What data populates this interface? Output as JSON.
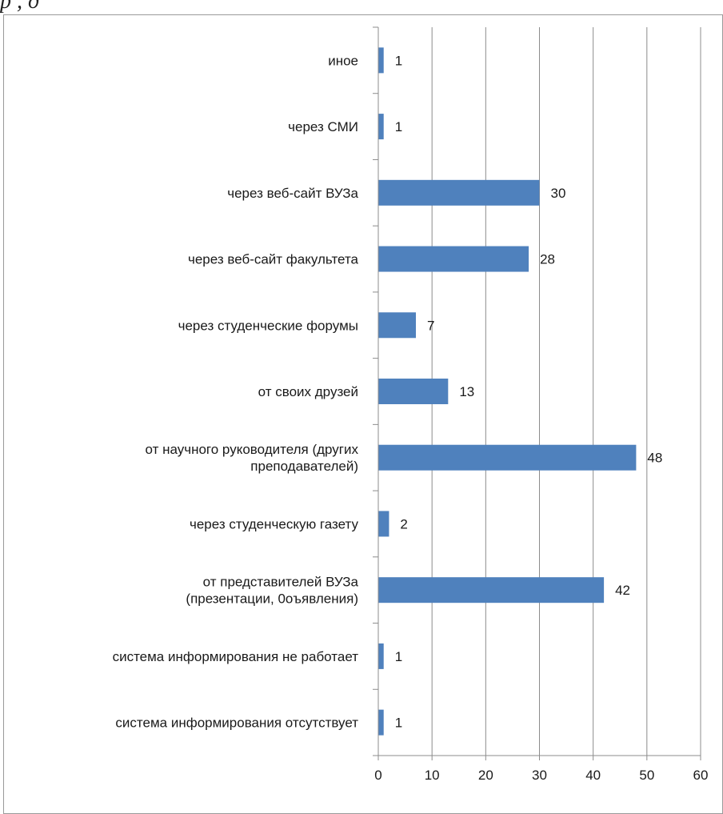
{
  "caption": "р                                                          ,                                                                                        д",
  "chart_data": {
    "type": "bar",
    "orientation": "horizontal",
    "title": "",
    "xlabel": "",
    "ylabel": "",
    "categories": [
      [
        "иное"
      ],
      [
        "через СМИ"
      ],
      [
        "через веб-сайт ВУЗа"
      ],
      [
        "через веб-сайт факультета"
      ],
      [
        "через студенческие форумы"
      ],
      [
        "от своих друзей"
      ],
      [
        "от научного руководителя (других",
        "преподавателей)"
      ],
      [
        "через студенческую газету"
      ],
      [
        "от представителей ВУЗа",
        "(презентации, 0оъявления)"
      ],
      [
        "система информирования  не работает"
      ],
      [
        "система информирования  отсутствует"
      ]
    ],
    "values": [
      1,
      1,
      30,
      28,
      7,
      13,
      48,
      2,
      42,
      1,
      1
    ],
    "value_labels": [
      "1",
      "1",
      "30",
      "28",
      "7",
      "13",
      "48",
      "2",
      "42",
      "1",
      "1"
    ],
    "xlim": [
      0,
      60
    ],
    "xticks": [
      0,
      10,
      20,
      30,
      40,
      50,
      60
    ],
    "xtick_labels": [
      "0",
      "10",
      "20",
      "30",
      "40",
      "50",
      "60"
    ],
    "grid": "vertical",
    "legend": "none",
    "bar_color": "#4f81bd",
    "grid_color": "#8c8c8c"
  }
}
